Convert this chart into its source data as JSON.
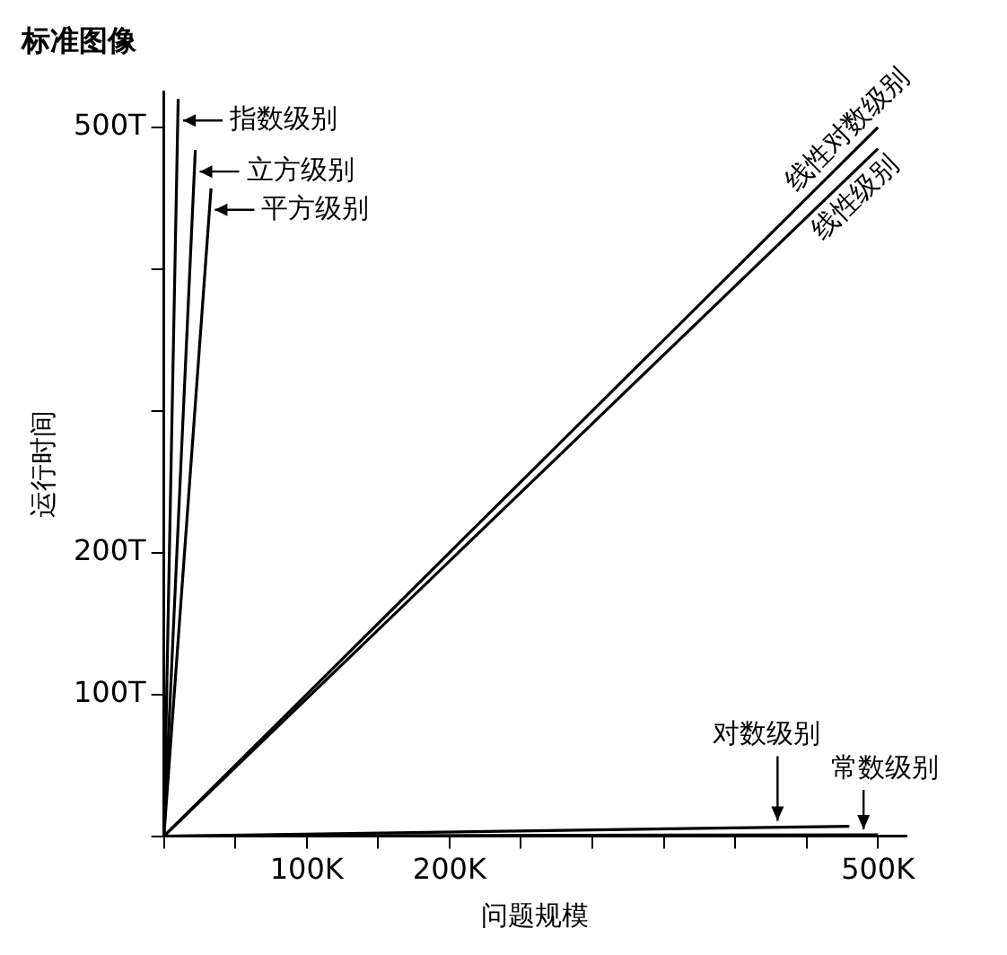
{
  "chart_data": {
    "type": "line",
    "title": "标准图像",
    "xlabel": "问题规模",
    "ylabel": "运行时间",
    "xlim": [
      0,
      520
    ],
    "ylim": [
      0,
      525
    ],
    "xticks": [
      {
        "value": 0,
        "label": null
      },
      {
        "value": 50,
        "label": null
      },
      {
        "value": 100,
        "label": "100K"
      },
      {
        "value": 150,
        "label": null
      },
      {
        "value": 200,
        "label": "200K"
      },
      {
        "value": 250,
        "label": null
      },
      {
        "value": 300,
        "label": null
      },
      {
        "value": 350,
        "label": null
      },
      {
        "value": 400,
        "label": null
      },
      {
        "value": 450,
        "label": null
      },
      {
        "value": 500,
        "label": "500K"
      }
    ],
    "yticks": [
      {
        "value": 0,
        "label": null
      },
      {
        "value": 100,
        "label": "100T"
      },
      {
        "value": 200,
        "label": "200T"
      },
      {
        "value": 300,
        "label": null
      },
      {
        "value": 400,
        "label": null
      },
      {
        "value": 500,
        "label": "500T"
      }
    ],
    "grid": false,
    "legend": "top left",
    "marker": "none",
    "line_style": "solid",
    "series": [
      {
        "name": "指数级别",
        "color": "#000000",
        "x": [
          0,
          10
        ],
        "values": [
          0,
          520
        ]
      },
      {
        "name": "立方级别",
        "color": "#000000",
        "x": [
          0,
          22
        ],
        "values": [
          0,
          484
        ]
      },
      {
        "name": "平方级别",
        "color": "#000000",
        "x": [
          0,
          33
        ],
        "values": [
          0,
          457
        ]
      },
      {
        "name": "线性对数级别",
        "color": "#000000",
        "x": [
          0,
          500
        ],
        "values": [
          0,
          500
        ]
      },
      {
        "name": "线性级别",
        "color": "#000000",
        "x": [
          0,
          500
        ],
        "values": [
          0,
          485
        ]
      },
      {
        "name": "对数级别",
        "color": "#000000",
        "x": [
          0,
          480
        ],
        "values": [
          0,
          7
        ]
      },
      {
        "name": "常数级别",
        "color": "#000000",
        "x": [
          0,
          500
        ],
        "values": [
          0,
          1
        ]
      }
    ]
  }
}
